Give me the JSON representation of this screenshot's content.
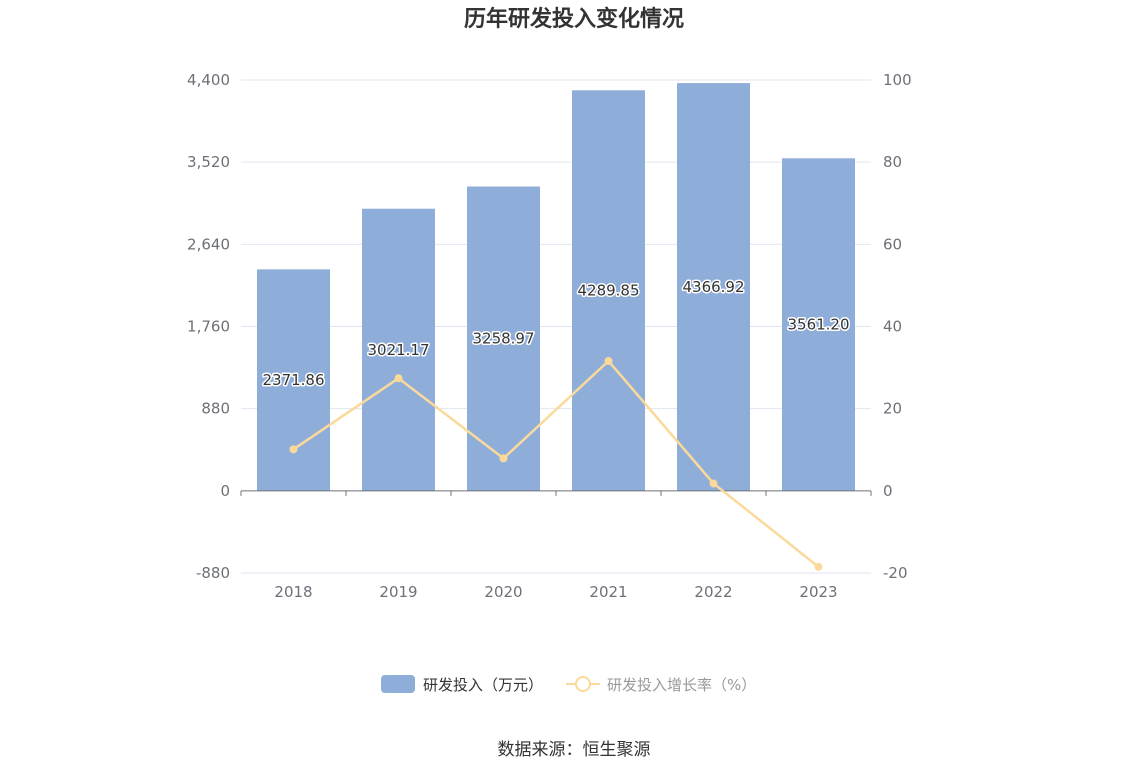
{
  "chart_data": {
    "title": "历年研发投入变化情况",
    "type": "bar+line",
    "categories": [
      "2018",
      "2019",
      "2020",
      "2021",
      "2022",
      "2023"
    ],
    "series": [
      {
        "name": "研发投入（万元）",
        "type": "bar",
        "axis": "left",
        "color": "#8eadd9",
        "values": [
          2371.86,
          3021.17,
          3258.97,
          4289.85,
          4366.92,
          3561.2
        ],
        "labels": [
          "2371.86",
          "3021.17",
          "3258.97",
          "4289.85",
          "4366.92",
          "3561.20"
        ]
      },
      {
        "name": "研发投入增长率（%）",
        "type": "line",
        "axis": "right",
        "color": "#fad99a",
        "values": [
          10.1,
          27.4,
          7.9,
          31.6,
          1.8,
          -18.5
        ]
      }
    ],
    "left_axis": {
      "min": -880,
      "max": 4400,
      "ticks": [
        -880,
        0,
        880,
        1760,
        2640,
        3520,
        4400
      ],
      "tick_labels": [
        "-880",
        "0",
        "880",
        "1,760",
        "2,640",
        "3,520",
        "4,400"
      ]
    },
    "right_axis": {
      "min": -20,
      "max": 100,
      "ticks": [
        -20,
        0,
        20,
        40,
        60,
        80,
        100
      ],
      "tick_labels": [
        "-20",
        "0",
        "20",
        "40",
        "60",
        "80",
        "100"
      ]
    },
    "grid": true,
    "legend_position": "bottom"
  },
  "source_text": "数据来源：恒生聚源"
}
